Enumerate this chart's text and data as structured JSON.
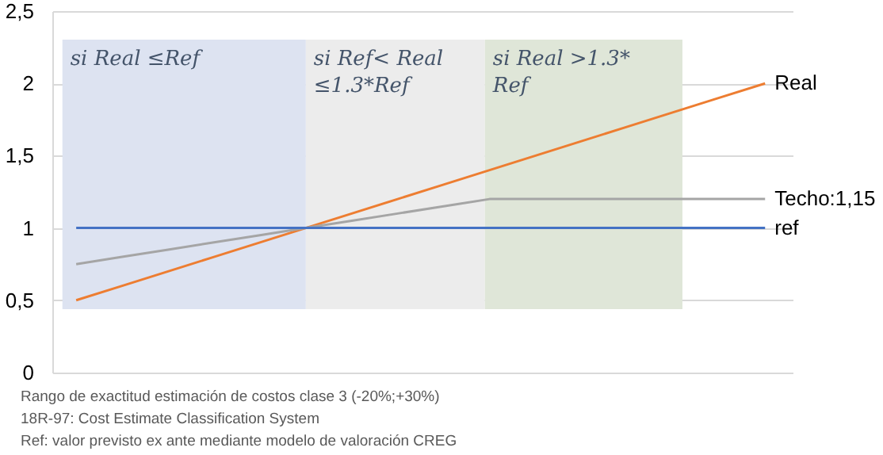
{
  "chart_data": {
    "type": "line",
    "categories": [
      null,
      null,
      null,
      null,
      null,
      null,
      null,
      null,
      null,
      null,
      null,
      null,
      null,
      null,
      null,
      null
    ],
    "ylim": [
      0,
      2.5
    ],
    "yticks": [
      0,
      {
        "value": 0.5,
        "label": "0,5"
      },
      1,
      {
        "value": 1.5,
        "label": "1,5"
      },
      2,
      {
        "value": 2.5,
        "label": "2,5"
      }
    ],
    "tick_labels": "y",
    "grid": "y",
    "series": [
      {
        "name": "Real",
        "color": "#ed7d31",
        "values": [
          0.5,
          0.6,
          0.7,
          0.8,
          0.9,
          1.0,
          1.1,
          1.2,
          1.3,
          1.4,
          1.5,
          1.6,
          1.7,
          1.8,
          1.9,
          2.0
        ]
      },
      {
        "name": "Techo:1,15",
        "color": "#a5a5a5",
        "values": [
          0.75,
          0.8,
          0.85,
          0.9,
          0.95,
          1.0,
          1.05,
          1.1,
          1.15,
          1.2,
          1.2,
          1.2,
          1.2,
          1.2,
          1.2,
          1.2
        ]
      },
      {
        "name": "ref",
        "color": "#4472c4",
        "values": [
          1,
          1,
          1,
          1,
          1,
          1,
          1,
          1,
          1,
          1,
          1,
          1,
          1,
          1,
          1,
          1
        ]
      }
    ],
    "annotations": [
      "si Real ≤Ref",
      "si Ref< Real ≤1.3*Ref",
      "si Real >1.3* Ref",
      "Rango de exactitud estimación de costos clase 3 (-20%;+30%)",
      "18R-97: Cost Estimate Classification System",
      "Ref: valor previsto ex ante mediante modelo de valoración CREG"
    ]
  }
}
